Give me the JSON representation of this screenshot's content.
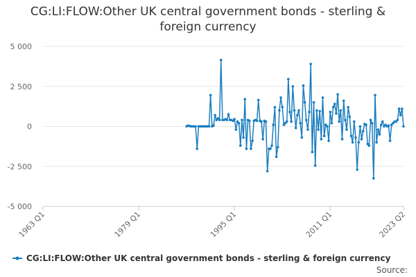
{
  "chart_data": {
    "type": "line",
    "title": "CG:LI:FLOW:Other UK central government bonds - sterling & foreign currency",
    "source": "Source:",
    "x": [
      "1987 Q1",
      "1987 Q2",
      "1987 Q3",
      "1987 Q4",
      "1988 Q1",
      "1988 Q2",
      "1988 Q3",
      "1988 Q4",
      "1989 Q1",
      "1989 Q2",
      "1989 Q3",
      "1989 Q4",
      "1990 Q1",
      "1990 Q2",
      "1990 Q3",
      "1990 Q4",
      "1991 Q1",
      "1991 Q2",
      "1991 Q3",
      "1991 Q4",
      "1992 Q1",
      "1992 Q2",
      "1992 Q3",
      "1992 Q4",
      "1993 Q1",
      "1993 Q2",
      "1993 Q3",
      "1993 Q4",
      "1994 Q1",
      "1994 Q2",
      "1994 Q3",
      "1994 Q4",
      "1995 Q1",
      "1995 Q2",
      "1995 Q3",
      "1995 Q4",
      "1996 Q1",
      "1996 Q2",
      "1996 Q3",
      "1996 Q4",
      "1997 Q1",
      "1997 Q2",
      "1997 Q3",
      "1997 Q4",
      "1998 Q1",
      "1998 Q2",
      "1998 Q3",
      "1998 Q4",
      "1999 Q1",
      "1999 Q2",
      "1999 Q3",
      "1999 Q4",
      "2000 Q1",
      "2000 Q2",
      "2000 Q3",
      "2000 Q4",
      "2001 Q1",
      "2001 Q2",
      "2001 Q3",
      "2001 Q4",
      "2002 Q1",
      "2002 Q2",
      "2002 Q3",
      "2002 Q4",
      "2003 Q1",
      "2003 Q2",
      "2003 Q3",
      "2003 Q4",
      "2004 Q1",
      "2004 Q2",
      "2004 Q3",
      "2004 Q4",
      "2005 Q1",
      "2005 Q2",
      "2005 Q3",
      "2005 Q4",
      "2006 Q1",
      "2006 Q2",
      "2006 Q3",
      "2006 Q4",
      "2007 Q1",
      "2007 Q2",
      "2007 Q3",
      "2007 Q4",
      "2008 Q1",
      "2008 Q2",
      "2008 Q3",
      "2008 Q4",
      "2009 Q1",
      "2009 Q2",
      "2009 Q3",
      "2009 Q4",
      "2010 Q1",
      "2010 Q2",
      "2010 Q3",
      "2010 Q4",
      "2011 Q1",
      "2011 Q2",
      "2011 Q3",
      "2011 Q4",
      "2012 Q1",
      "2012 Q2",
      "2012 Q3",
      "2012 Q4",
      "2013 Q1",
      "2013 Q2",
      "2013 Q3",
      "2013 Q4",
      "2014 Q1",
      "2014 Q2",
      "2014 Q3",
      "2014 Q4",
      "2015 Q1",
      "2015 Q2",
      "2015 Q3",
      "2015 Q4",
      "2016 Q1",
      "2016 Q2",
      "2016 Q3",
      "2016 Q4",
      "2017 Q1",
      "2017 Q2",
      "2017 Q3",
      "2017 Q4",
      "2018 Q1",
      "2018 Q2",
      "2018 Q3",
      "2018 Q4",
      "2019 Q1",
      "2019 Q2",
      "2019 Q3",
      "2019 Q4",
      "2020 Q1",
      "2020 Q2",
      "2020 Q3",
      "2020 Q4",
      "2021 Q1",
      "2021 Q2",
      "2021 Q3",
      "2021 Q4",
      "2022 Q1",
      "2022 Q2",
      "2022 Q3",
      "2022 Q4",
      "2023 Q1",
      "2023 Q2"
    ],
    "series": [
      {
        "name": "CG:LI:FLOW:Other UK central government bonds - sterling & foreign currency",
        "color": "#1a7dbf",
        "values": [
          0,
          50,
          20,
          0,
          0,
          0,
          0,
          -1400,
          0,
          0,
          0,
          0,
          0,
          0,
          0,
          0,
          1950,
          0,
          50,
          700,
          400,
          500,
          400,
          4150,
          400,
          400,
          450,
          400,
          750,
          400,
          400,
          350,
          450,
          -200,
          300,
          200,
          -1200,
          400,
          -700,
          1700,
          -1400,
          400,
          350,
          -1400,
          -900,
          350,
          400,
          350,
          1650,
          350,
          300,
          -800,
          350,
          300,
          -2800,
          -1400,
          -1400,
          -1200,
          100,
          1200,
          -1900,
          -1300,
          1000,
          1800,
          1200,
          100,
          200,
          300,
          2950,
          900,
          300,
          2500,
          1000,
          -100,
          700,
          1000,
          200,
          -700,
          2550,
          1500,
          400,
          -200,
          900,
          3900,
          -1600,
          1500,
          -2450,
          1000,
          -200,
          950,
          -800,
          1800,
          -600,
          100,
          0,
          -900,
          900,
          200,
          1200,
          1400,
          800,
          2000,
          300,
          1000,
          -800,
          1600,
          400,
          -200,
          1200,
          600,
          -600,
          -1000,
          300,
          -700,
          -2700,
          -1000,
          0,
          -800,
          -300,
          150,
          100,
          -1100,
          -1200,
          400,
          200,
          -3250,
          1950,
          -1000,
          -200,
          -500,
          100,
          300,
          0,
          100,
          0,
          50,
          -900,
          100,
          200,
          300,
          300,
          400,
          1100,
          700,
          1100,
          0
        ]
      }
    ],
    "xlim": [
      "1963 Q1",
      "2023 Q2"
    ],
    "xticks": [
      "1963 Q1",
      "1979 Q1",
      "1995 Q1",
      "2011 Q1",
      "2023 Q2"
    ],
    "ylim": [
      -5000,
      5000
    ],
    "yticks": [
      {
        "value": -5000,
        "label": "-5 000"
      },
      {
        "value": -2500,
        "label": "-2 500"
      },
      0,
      {
        "value": 2500,
        "label": "2 500"
      },
      {
        "value": 5000,
        "label": "5 000"
      }
    ],
    "grid": true
  }
}
